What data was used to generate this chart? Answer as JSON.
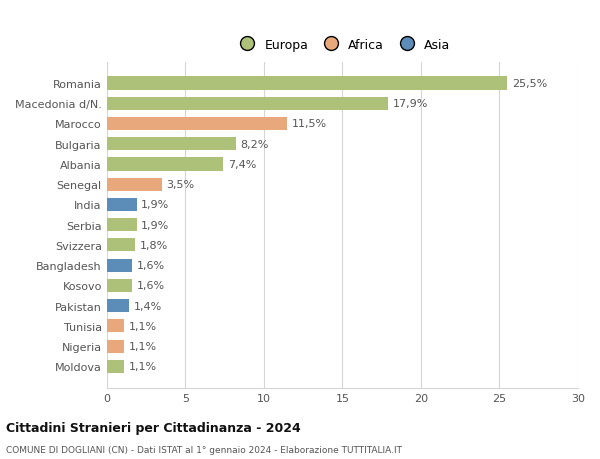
{
  "categories": [
    "Romania",
    "Macedonia d/N.",
    "Marocco",
    "Bulgaria",
    "Albania",
    "Senegal",
    "India",
    "Serbia",
    "Svizzera",
    "Bangladesh",
    "Kosovo",
    "Pakistan",
    "Tunisia",
    "Nigeria",
    "Moldova"
  ],
  "values": [
    25.5,
    17.9,
    11.5,
    8.2,
    7.4,
    3.5,
    1.9,
    1.9,
    1.8,
    1.6,
    1.6,
    1.4,
    1.1,
    1.1,
    1.1
  ],
  "colors": [
    "#adc178",
    "#adc178",
    "#e8a87c",
    "#adc178",
    "#adc178",
    "#e8a87c",
    "#5b8db8",
    "#adc178",
    "#adc178",
    "#5b8db8",
    "#adc178",
    "#5b8db8",
    "#e8a87c",
    "#e8a87c",
    "#adc178"
  ],
  "labels": [
    "25,5%",
    "17,9%",
    "11,5%",
    "8,2%",
    "7,4%",
    "3,5%",
    "1,9%",
    "1,9%",
    "1,8%",
    "1,6%",
    "1,6%",
    "1,4%",
    "1,1%",
    "1,1%",
    "1,1%"
  ],
  "legend": [
    {
      "label": "Europa",
      "color": "#adc178"
    },
    {
      "label": "Africa",
      "color": "#e8a87c"
    },
    {
      "label": "Asia",
      "color": "#5b8db8"
    }
  ],
  "title1": "Cittadini Stranieri per Cittadinanza - 2024",
  "title2": "COMUNE DI DOGLIANI (CN) - Dati ISTAT al 1° gennaio 2024 - Elaborazione TUTTITALIA.IT",
  "xlim": [
    0,
    30
  ],
  "xticks": [
    0,
    5,
    10,
    15,
    20,
    25,
    30
  ],
  "background_color": "#ffffff",
  "grid_color": "#d5d5d5",
  "bar_height": 0.65
}
